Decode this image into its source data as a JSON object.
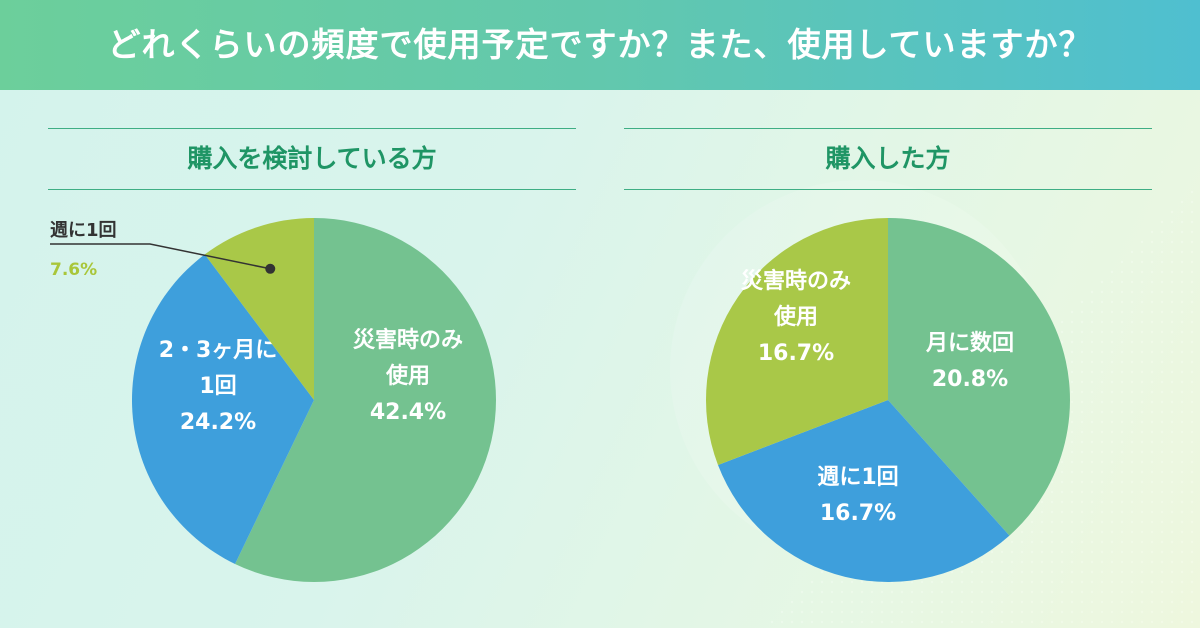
{
  "header": {
    "title": "どれくらいの頻度で使用予定ですか？また、使用していますか？"
  },
  "colors": {
    "green": "#74c290",
    "blue": "#3e9fdc",
    "lime": "#a9c848",
    "title_green": "#1f9565"
  },
  "chart_data": [
    {
      "type": "pie",
      "title": "購入を検討している方",
      "slices": [
        {
          "label_lines": [
            "災害時のみ",
            "使用"
          ],
          "value": 42.4,
          "value_label": "42.4%",
          "color": "#74c290"
        },
        {
          "label_lines": [
            "2・3ヶ月に",
            "1回"
          ],
          "value": 24.2,
          "value_label": "24.2%",
          "color": "#3e9fdc"
        },
        {
          "label_lines": [
            "週に1回"
          ],
          "value": 7.6,
          "value_label": "7.6%",
          "color": "#a9c848"
        }
      ]
    },
    {
      "type": "pie",
      "title": "購入した方",
      "slices": [
        {
          "label_lines": [
            "月に数回"
          ],
          "value": 20.8,
          "value_label": "20.8%",
          "color": "#74c290"
        },
        {
          "label_lines": [
            "週に1回"
          ],
          "value": 16.7,
          "value_label": "16.7%",
          "color": "#3e9fdc"
        },
        {
          "label_lines": [
            "災害時のみ",
            "使用"
          ],
          "value": 16.7,
          "value_label": "16.7%",
          "color": "#a9c848"
        }
      ]
    }
  ]
}
